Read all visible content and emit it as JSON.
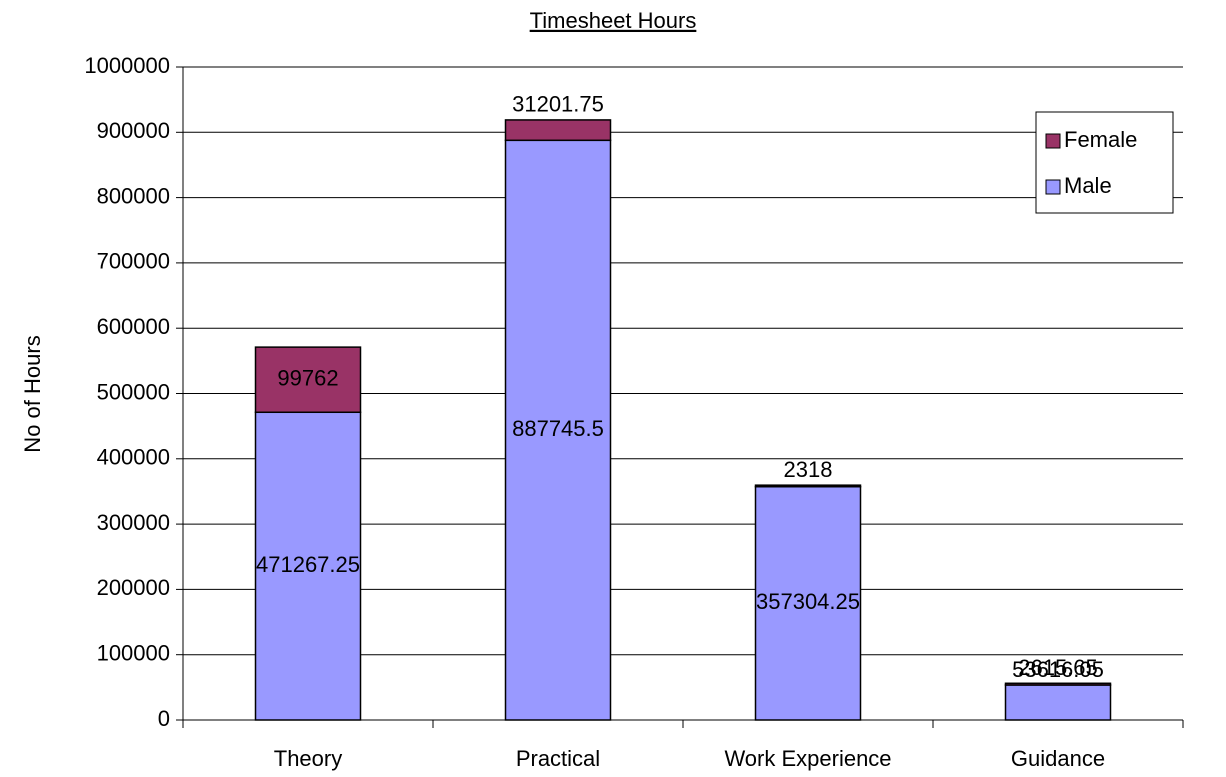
{
  "chart_data": {
    "type": "stacked_bar",
    "title": "Timesheet Hours",
    "ylabel": "No of Hours",
    "categories": [
      "Theory",
      "Practical",
      "Work Experience",
      "Guidance"
    ],
    "series": [
      {
        "name": "Male",
        "color": "#9999ff",
        "values": [
          471267.25,
          887745.5,
          357304.25,
          53616.05
        ]
      },
      {
        "name": "Female",
        "color": "#993366",
        "values": [
          99762,
          31201.75,
          2318,
          2615.65
        ]
      }
    ],
    "ylim": [
      0,
      1000000
    ],
    "yticks": [
      0,
      100000,
      200000,
      300000,
      400000,
      500000,
      600000,
      700000,
      800000,
      900000,
      1000000
    ],
    "grid": true,
    "legend": "upper right"
  }
}
